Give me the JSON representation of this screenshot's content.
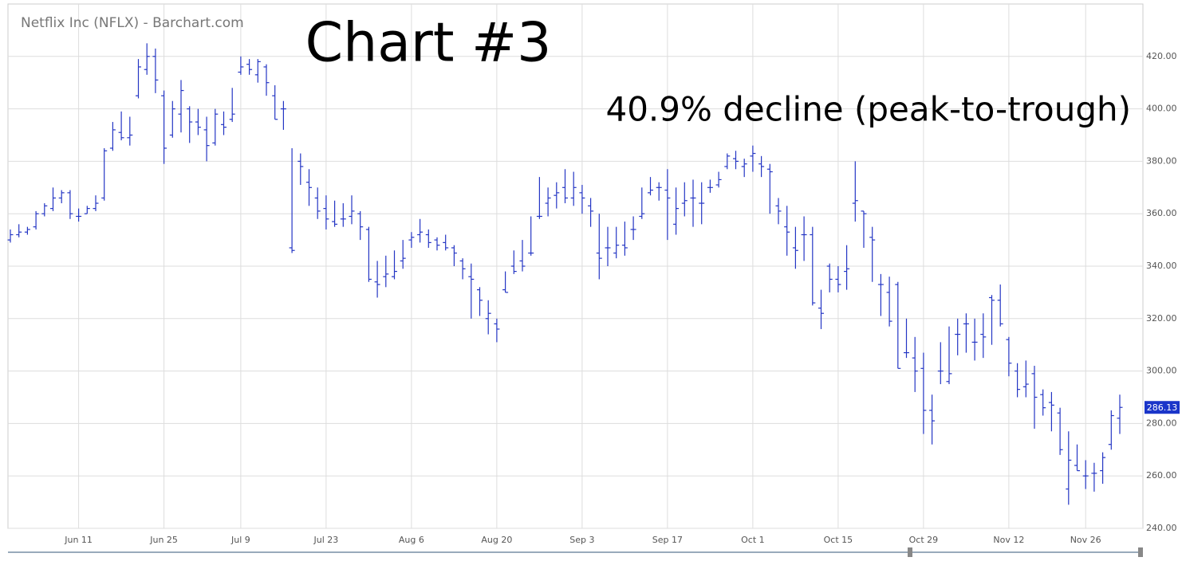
{
  "chart_data": {
    "type": "ohlc",
    "title": "Netflix Inc (NFLX) - Barchart.com",
    "annotations": [
      "Chart #3",
      "40.9% decline (peak-to-trough)"
    ],
    "color": "#2436c4",
    "grid": true,
    "last_price": 286.13,
    "ylim": [
      240,
      440
    ],
    "yticks": [
      {
        "value": 240,
        "label": "240.00"
      },
      {
        "value": 260,
        "label": "260.00"
      },
      {
        "value": 280,
        "label": "280.00"
      },
      {
        "value": 300,
        "label": "300.00"
      },
      {
        "value": 320,
        "label": "320.00"
      },
      {
        "value": 340,
        "label": "340.00"
      },
      {
        "value": 360,
        "label": "360.00"
      },
      {
        "value": 380,
        "label": "380.00"
      },
      {
        "value": 400,
        "label": "400.00"
      },
      {
        "value": 420,
        "label": "420.00"
      }
    ],
    "categories": [
      null,
      null,
      null,
      null,
      null,
      null,
      null,
      null,
      "Jun 11",
      null,
      null,
      null,
      null,
      null,
      null,
      null,
      null,
      null,
      "Jun 25",
      null,
      null,
      null,
      null,
      null,
      null,
      null,
      null,
      "Jul 9",
      null,
      null,
      null,
      null,
      null,
      null,
      null,
      null,
      null,
      "Jul 23",
      null,
      null,
      null,
      null,
      null,
      null,
      null,
      null,
      null,
      "Aug 6",
      null,
      null,
      null,
      null,
      null,
      null,
      null,
      null,
      null,
      "Aug 20",
      null,
      null,
      null,
      null,
      null,
      null,
      null,
      null,
      null,
      "Sep 3",
      null,
      null,
      null,
      null,
      null,
      null,
      null,
      null,
      null,
      "Sep 17",
      null,
      null,
      null,
      null,
      null,
      null,
      null,
      null,
      null,
      "Oct 1",
      null,
      null,
      null,
      null,
      null,
      null,
      null,
      null,
      null,
      "Oct 15",
      null,
      null,
      null,
      null,
      null,
      null,
      null,
      null,
      null,
      "Oct 29",
      null,
      null,
      null,
      null,
      null,
      null,
      null,
      null,
      null,
      "Nov 12",
      null,
      null,
      null,
      null,
      null,
      null,
      null,
      null,
      "Nov 26",
      null,
      null,
      null,
      null
    ],
    "open": [
      350,
      352,
      353,
      355,
      360,
      362,
      366,
      368,
      359,
      360,
      362,
      366,
      385,
      391,
      389,
      405,
      415,
      420,
      405,
      390,
      398,
      400,
      395,
      392,
      387,
      394,
      396,
      414,
      417,
      413,
      416,
      405,
      400,
      347,
      380,
      372,
      366,
      362,
      357,
      358,
      359,
      360,
      354,
      334,
      336,
      336,
      342,
      350,
      352,
      352,
      350,
      349,
      347,
      342,
      336,
      331,
      320,
      318,
      331,
      340,
      342,
      345,
      359,
      364,
      367,
      370,
      366,
      368,
      363,
      345,
      347,
      345,
      348,
      354,
      359,
      368,
      370,
      369,
      356,
      364,
      366,
      364,
      370,
      371,
      378,
      381,
      378,
      382,
      379,
      377,
      363,
      355,
      347,
      352,
      352,
      324,
      340,
      335,
      338,
      364,
      361,
      351,
      333,
      330,
      333,
      307,
      305,
      301,
      285,
      300,
      296,
      314,
      318,
      311,
      314,
      328,
      327,
      312,
      300,
      294,
      299,
      291,
      288,
      284,
      255,
      264,
      260,
      261,
      262,
      272,
      282
    ],
    "high": [
      354,
      356,
      355,
      361,
      364,
      370,
      369,
      369,
      362,
      363,
      367,
      385,
      395,
      399,
      397,
      419,
      425,
      423,
      407,
      403,
      411,
      401,
      400,
      397,
      400,
      399,
      408,
      420,
      419,
      419,
      417,
      409,
      403,
      385,
      383,
      377,
      370,
      367,
      365,
      364,
      367,
      361,
      355,
      342,
      344,
      346,
      350,
      353,
      358,
      354,
      351,
      352,
      348,
      343,
      341,
      332,
      327,
      320,
      338,
      346,
      350,
      359,
      374,
      370,
      372,
      377,
      376,
      371,
      366,
      360,
      355,
      355,
      357,
      359,
      370,
      374,
      372,
      377,
      370,
      372,
      373,
      372,
      373,
      376,
      383,
      384,
      381,
      386,
      382,
      379,
      366,
      363,
      355,
      359,
      355,
      331,
      341,
      340,
      348,
      380,
      361,
      355,
      337,
      336,
      334,
      320,
      313,
      307,
      291,
      311,
      317,
      320,
      322,
      320,
      322,
      329,
      333,
      313,
      303,
      304,
      302,
      293,
      292,
      286,
      277,
      272,
      266,
      265,
      269,
      285,
      291
    ],
    "low": [
      349,
      351,
      352,
      354,
      359,
      361,
      364,
      358,
      357,
      360,
      361,
      365,
      384,
      388,
      386,
      404,
      413,
      406,
      379,
      389,
      391,
      387,
      390,
      380,
      386,
      390,
      395,
      413,
      413,
      410,
      405,
      396,
      392,
      345,
      371,
      363,
      358,
      354,
      355,
      355,
      356,
      350,
      334,
      328,
      332,
      335,
      339,
      347,
      349,
      347,
      346,
      346,
      340,
      335,
      320,
      321,
      314,
      311,
      330,
      337,
      338,
      344,
      358,
      359,
      362,
      364,
      363,
      360,
      355,
      335,
      340,
      343,
      344,
      350,
      358,
      367,
      365,
      350,
      352,
      359,
      355,
      356,
      368,
      370,
      377,
      377,
      374,
      376,
      374,
      360,
      356,
      344,
      339,
      342,
      325,
      316,
      330,
      330,
      331,
      357,
      347,
      334,
      321,
      317,
      301,
      305,
      292,
      276,
      272,
      295,
      295,
      306,
      307,
      304,
      305,
      310,
      317,
      298,
      290,
      290,
      278,
      283,
      277,
      268,
      249,
      262,
      255,
      254,
      257,
      270,
      276
    ],
    "close": [
      352,
      353,
      354,
      360,
      363,
      366,
      368,
      360,
      359,
      362,
      364,
      384,
      392,
      389,
      390,
      416,
      420,
      411,
      385,
      400,
      407,
      395,
      393,
      386,
      398,
      393,
      398,
      416,
      415,
      418,
      410,
      396,
      400,
      346,
      378,
      370,
      361,
      358,
      356,
      358,
      361,
      355,
      335,
      333,
      337,
      338,
      343,
      351,
      353,
      349,
      348,
      347,
      345,
      339,
      335,
      327,
      322,
      316,
      330,
      338,
      340,
      345,
      359,
      366,
      368,
      366,
      370,
      366,
      361,
      343,
      347,
      348,
      347,
      354,
      360,
      369,
      370,
      366,
      362,
      365,
      366,
      364,
      370,
      373,
      382,
      380,
      379,
      383,
      378,
      376,
      361,
      353,
      346,
      352,
      326,
      322,
      335,
      333,
      339,
      365,
      360,
      350,
      333,
      319,
      301,
      307,
      300,
      285,
      281,
      300,
      299,
      314,
      318,
      311,
      313,
      327,
      318,
      303,
      293,
      295,
      290,
      286,
      287,
      270,
      266,
      262,
      260,
      261,
      267,
      283,
      286.13
    ]
  }
}
